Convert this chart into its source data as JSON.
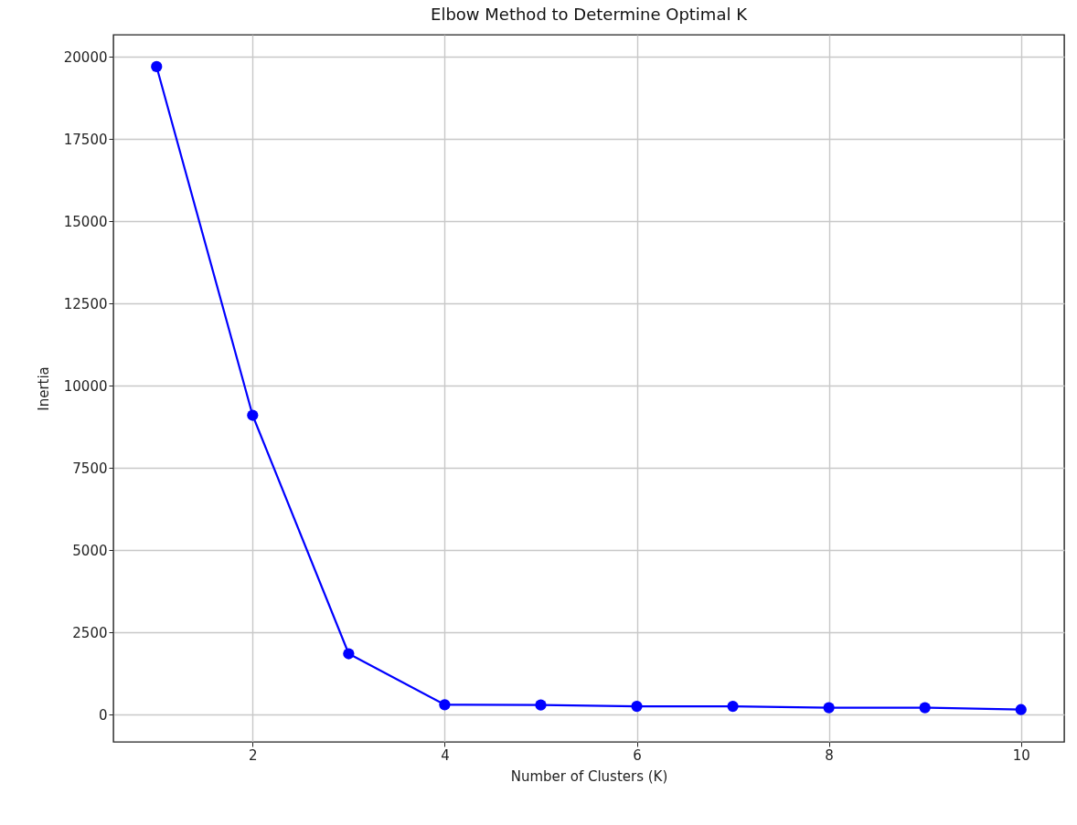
{
  "chart_data": {
    "type": "line",
    "title": "Elbow Method to Determine Optimal K",
    "xlabel": "Number of Clusters (K)",
    "ylabel": "Inertia",
    "x": [
      1,
      2,
      3,
      4,
      5,
      6,
      7,
      8,
      9,
      10
    ],
    "series": [
      {
        "color": "#0000ff",
        "values": [
          19700,
          9100,
          1850,
          300,
          290,
          250,
          250,
          210,
          210,
          150
        ]
      }
    ],
    "xlim": [
      0.55,
      10.45
    ],
    "xticks": [
      2,
      4,
      6,
      8,
      10
    ],
    "ylim": [
      -830,
      20670
    ],
    "yticks": [
      0,
      2500,
      5000,
      7500,
      10000,
      12500,
      15000,
      17500,
      20000
    ],
    "grid": true,
    "marker": "circle",
    "line_style": "solid"
  }
}
